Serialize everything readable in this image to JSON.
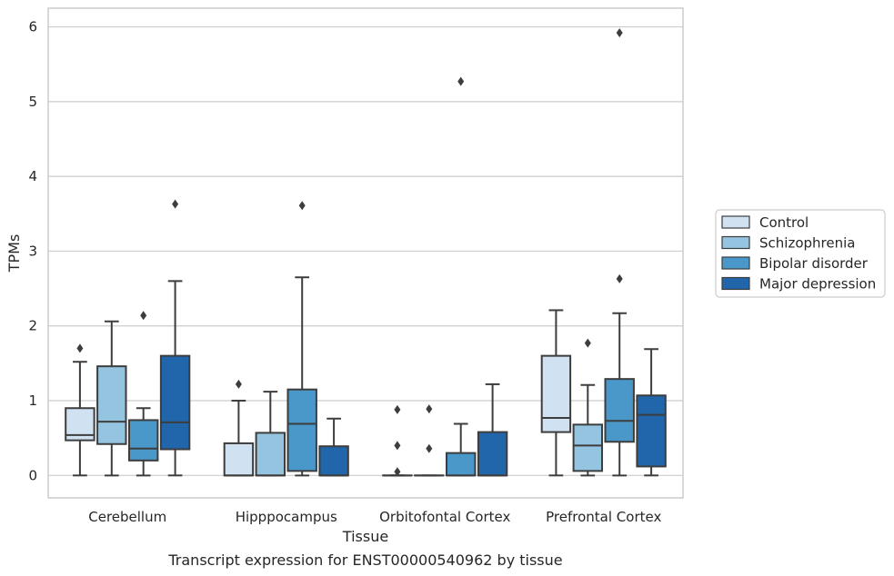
{
  "chart_data": {
    "type": "box",
    "xlabel": "Tissue",
    "ylabel": "TPMs",
    "caption": "Transcript expression for ENST00000540962 by tissue",
    "ylim": [
      -0.3,
      6.25
    ],
    "yticks": [
      0,
      1,
      2,
      3,
      4,
      5,
      6
    ],
    "grid": true,
    "legend_position": "right",
    "categories": [
      "Cerebellum",
      "Hipppocampus",
      "Orbitofontal Cortex",
      "Prefrontal Cortex"
    ],
    "series": [
      {
        "name": "Control",
        "color": "#d0e1f2",
        "boxes": [
          {
            "whislo": 0.0,
            "q1": 0.47,
            "med": 0.54,
            "q3": 0.9,
            "whishi": 1.52,
            "fliers": [
              1.7
            ]
          },
          {
            "whislo": 0.0,
            "q1": 0.0,
            "med": 0.0,
            "q3": 0.43,
            "whishi": 1.0,
            "fliers": [
              1.22
            ]
          },
          {
            "whislo": 0.0,
            "q1": 0.0,
            "med": 0.0,
            "q3": 0.0,
            "whishi": 0.0,
            "fliers": [
              0.05,
              0.4,
              0.88
            ]
          },
          {
            "whislo": 0.0,
            "q1": 0.58,
            "med": 0.77,
            "q3": 1.6,
            "whishi": 2.21,
            "fliers": []
          }
        ]
      },
      {
        "name": "Schizophrenia",
        "color": "#94c4df",
        "boxes": [
          {
            "whislo": 0.0,
            "q1": 0.42,
            "med": 0.72,
            "q3": 1.46,
            "whishi": 2.06,
            "fliers": []
          },
          {
            "whislo": 0.0,
            "q1": 0.0,
            "med": 0.0,
            "q3": 0.57,
            "whishi": 1.12,
            "fliers": []
          },
          {
            "whislo": 0.0,
            "q1": 0.0,
            "med": 0.0,
            "q3": 0.0,
            "whishi": 0.0,
            "fliers": [
              0.36,
              0.89
            ]
          },
          {
            "whislo": 0.0,
            "q1": 0.06,
            "med": 0.4,
            "q3": 0.68,
            "whishi": 1.21,
            "fliers": [
              1.77
            ]
          }
        ]
      },
      {
        "name": "Bipolar disorder",
        "color": "#4a98c9",
        "boxes": [
          {
            "whislo": 0.0,
            "q1": 0.2,
            "med": 0.36,
            "q3": 0.74,
            "whishi": 0.9,
            "fliers": [
              2.14
            ]
          },
          {
            "whislo": 0.0,
            "q1": 0.06,
            "med": 0.69,
            "q3": 1.15,
            "whishi": 2.65,
            "fliers": [
              3.61
            ]
          },
          {
            "whislo": 0.0,
            "q1": 0.0,
            "med": 0.0,
            "q3": 0.3,
            "whishi": 0.69,
            "fliers": [
              5.27
            ]
          },
          {
            "whislo": 0.0,
            "q1": 0.45,
            "med": 0.73,
            "q3": 1.29,
            "whishi": 2.17,
            "fliers": [
              2.63,
              5.92
            ]
          }
        ]
      },
      {
        "name": "Major depression",
        "color": "#2165ab",
        "boxes": [
          {
            "whislo": 0.0,
            "q1": 0.35,
            "med": 0.71,
            "q3": 1.6,
            "whishi": 2.6,
            "fliers": [
              3.63
            ]
          },
          {
            "whislo": 0.0,
            "q1": 0.0,
            "med": 0.0,
            "q3": 0.39,
            "whishi": 0.76,
            "fliers": []
          },
          {
            "whislo": 0.0,
            "q1": 0.0,
            "med": 0.0,
            "q3": 0.58,
            "whishi": 1.22,
            "fliers": []
          },
          {
            "whislo": 0.0,
            "q1": 0.12,
            "med": 0.81,
            "q3": 1.07,
            "whishi": 1.69,
            "fliers": []
          }
        ]
      }
    ]
  }
}
